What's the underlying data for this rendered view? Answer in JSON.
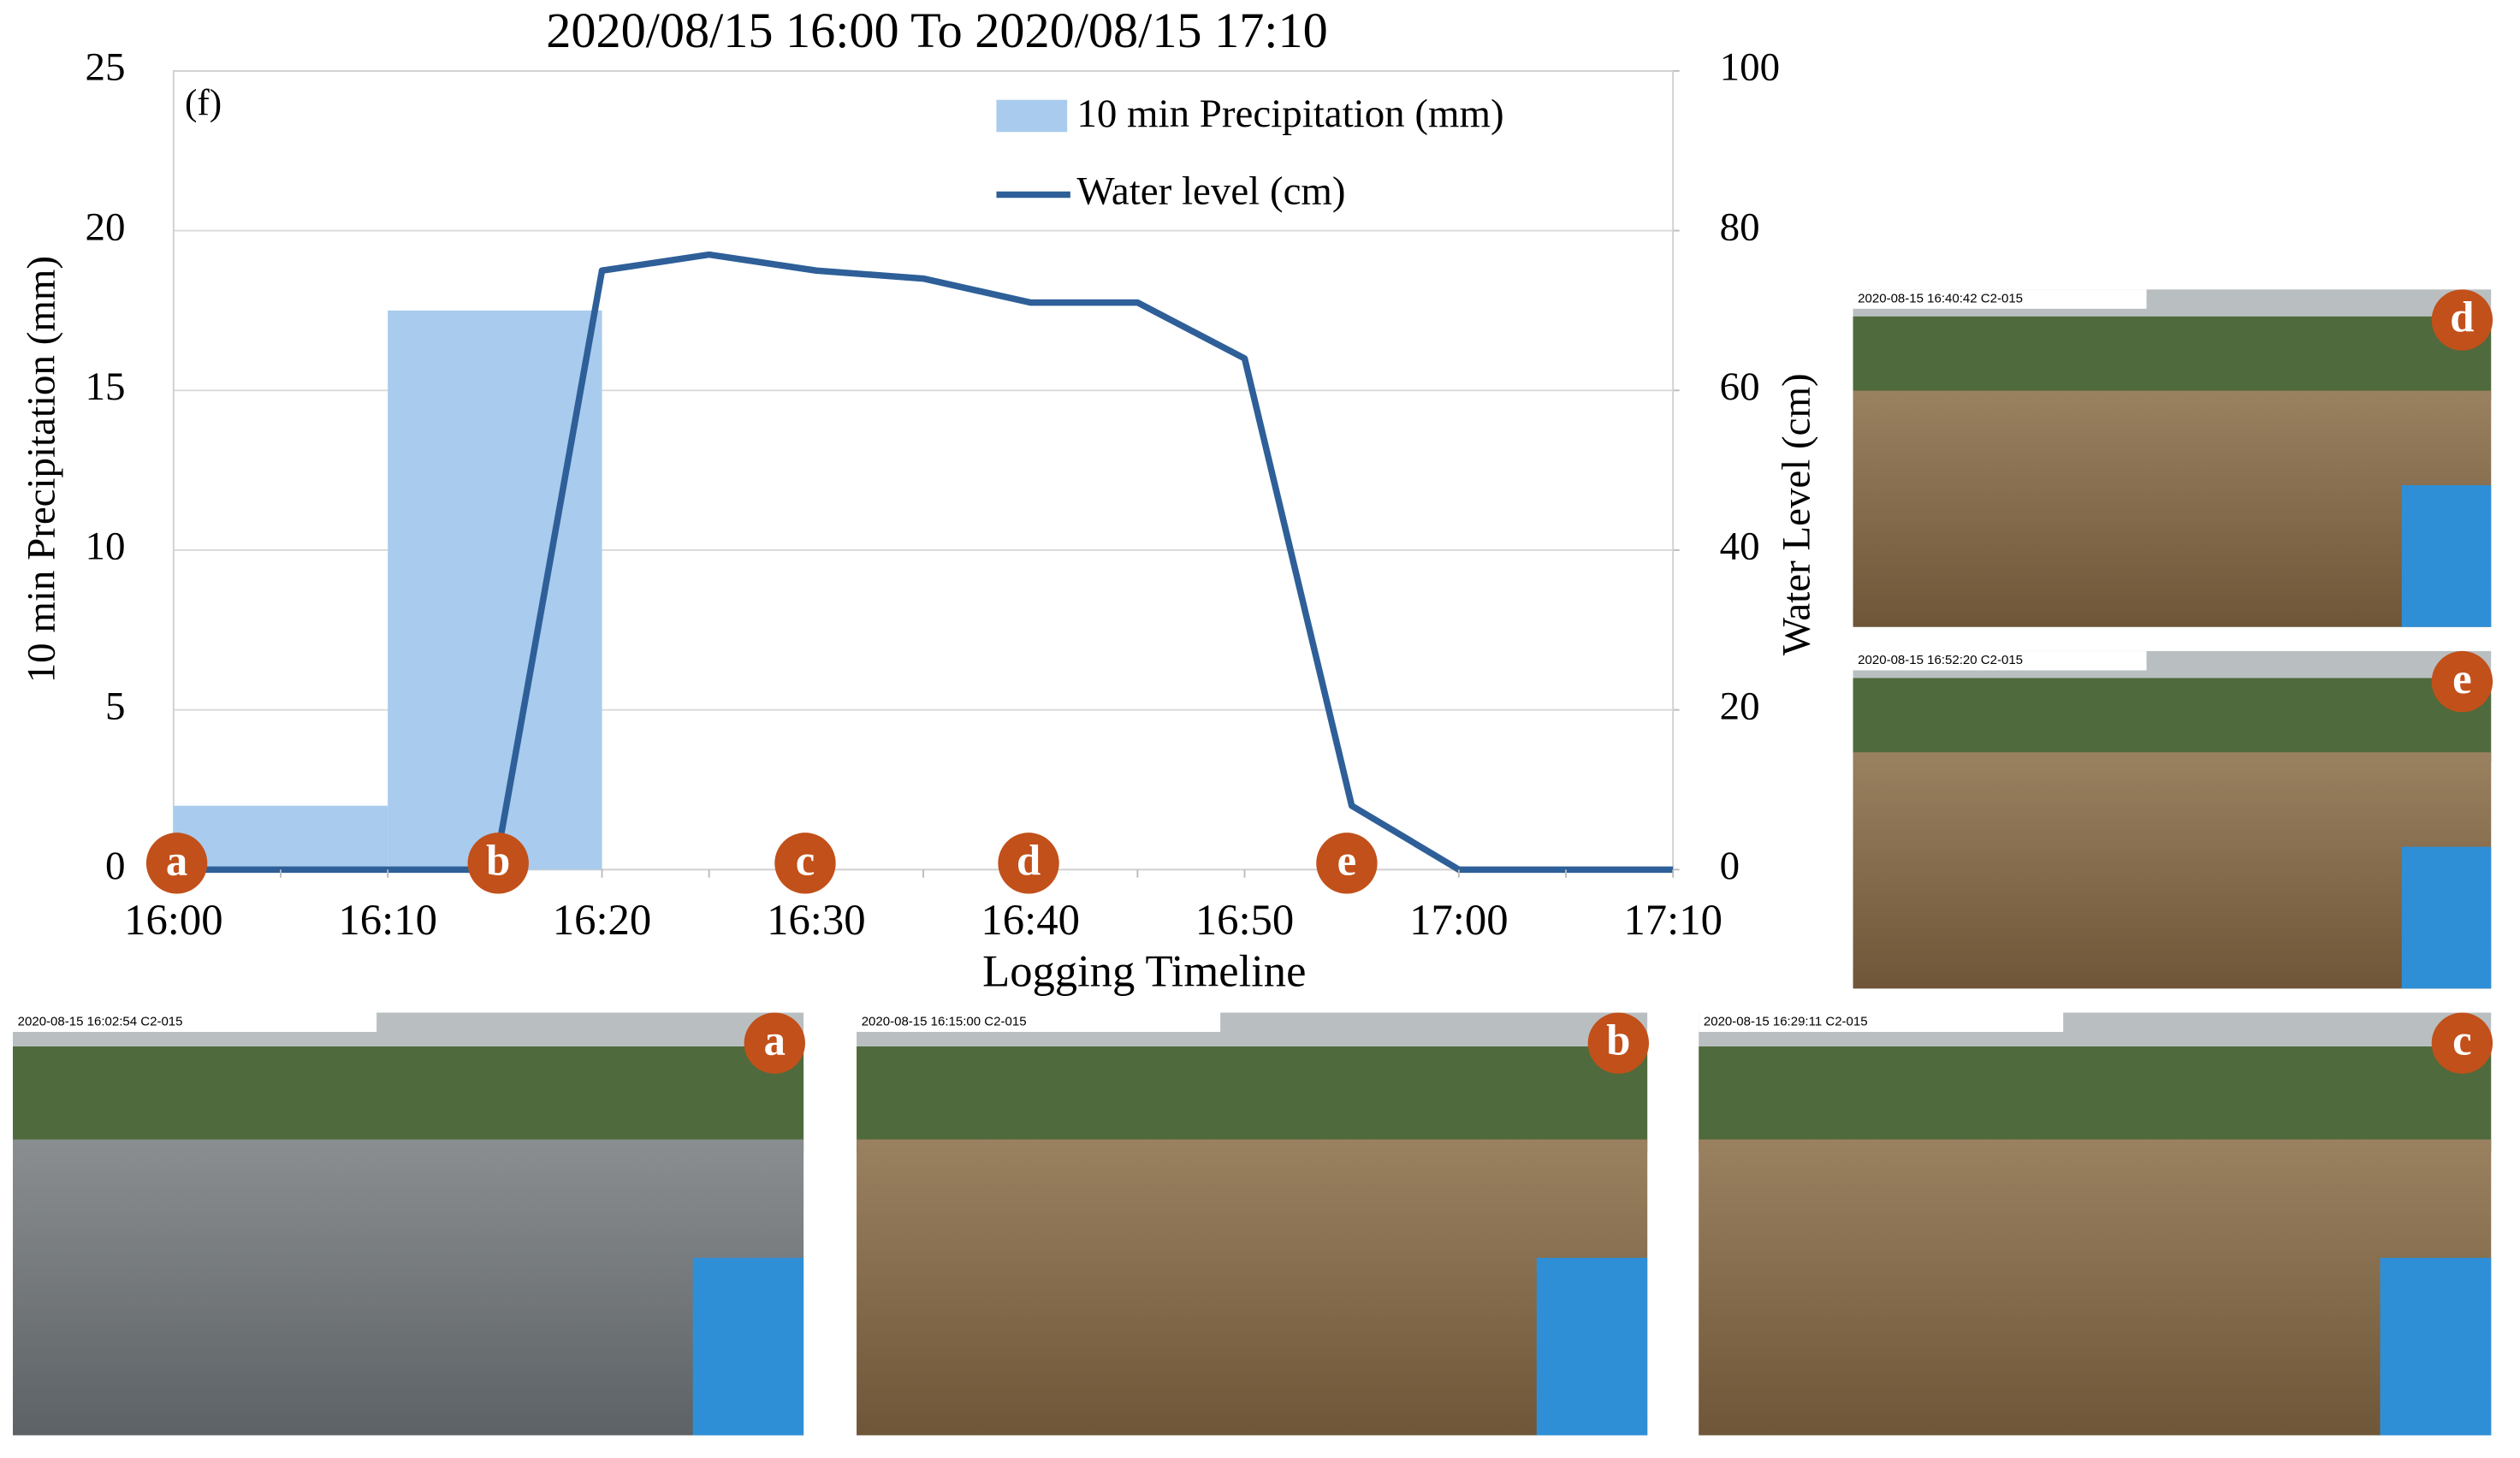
{
  "chart_data": {
    "type": "bar-line",
    "title": "2020/08/15 16:00 To 2020/08/15 17:10",
    "panel_label": "(f)",
    "x_label": "Logging Timeline",
    "y_label": "10 min Precipitation (mm)",
    "y2_label": "Water Level (cm)",
    "categories": [
      "16:00",
      null,
      "16:10",
      null,
      "16:20",
      null,
      "16:30",
      null,
      "16:40",
      null,
      "16:50",
      null,
      "17:00",
      null,
      "17:10"
    ],
    "series": [
      {
        "name": "10 min Precipitation (mm)",
        "type": "bar",
        "color": "#a9cbed",
        "values": [
          2,
          null,
          17.5,
          null,
          0,
          null,
          0,
          null,
          0,
          null,
          0,
          null,
          0,
          null,
          null
        ]
      },
      {
        "name": "Water level (cm)",
        "type": "line",
        "axis": "y2",
        "color": "#2e5f98",
        "values": [
          0,
          0,
          0,
          0,
          75,
          77,
          75,
          74,
          71,
          71,
          64,
          8,
          0,
          0,
          0
        ]
      }
    ],
    "ylim": [
      0,
      25
    ],
    "yticks": [
      0,
      5,
      10,
      15,
      20,
      25
    ],
    "y2lim": [
      0,
      100
    ],
    "y2ticks": [
      0,
      20,
      40,
      60,
      80,
      100
    ],
    "grid": true,
    "legend": "top-right",
    "markers": [
      "a",
      "b",
      "c",
      "d",
      "e"
    ]
  },
  "photos": [
    {
      "label": "a",
      "stamp": "2020-08-15 16:02:54 C2-015"
    },
    {
      "label": "b",
      "stamp": "2020-08-15 16:15:00 C2-015"
    },
    {
      "label": "c",
      "stamp": "2020-08-15 16:29:11 C2-015"
    },
    {
      "label": "d",
      "stamp": "2020-08-15 16:40:42 C2-015"
    },
    {
      "label": "e",
      "stamp": "2020-08-15 16:52:20 C2-015"
    }
  ]
}
